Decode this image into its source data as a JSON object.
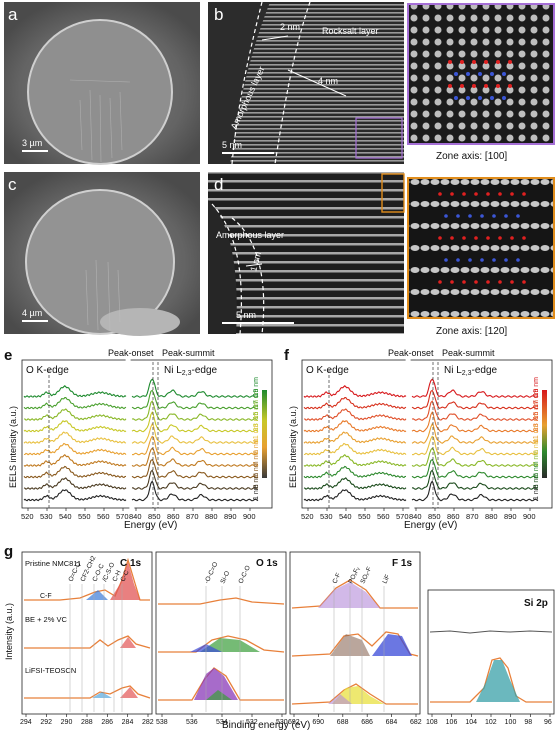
{
  "panels": {
    "a": {
      "label": "a",
      "scale": "3 µm"
    },
    "b": {
      "label": "b",
      "scale": "5 nm",
      "amorphous": "Amorphous layer",
      "rocksalt": "Rocksalt layer",
      "d1": "2 nm",
      "d2": "4 nm",
      "zone": "Zone axis: [100]"
    },
    "c": {
      "label": "c",
      "scale": "4 µm"
    },
    "d": {
      "label": "d",
      "scale": "5 nm",
      "amorphous": "Amorphous layer",
      "d1": "1 nm",
      "zone": "Zone axis: [120]"
    },
    "e": {
      "label": "e",
      "okedge": "O K-edge",
      "niedge": "Ni L",
      "niedge_sub": "2,3",
      "niedge_end": "-edge",
      "onset": "Peak-onset",
      "summit": "Peak-summit",
      "ylabel": "EELS intensity (a.u.)",
      "xlabel": "Energy (eV)"
    },
    "f": {
      "label": "f",
      "okedge": "O K-edge",
      "niedge": "Ni L",
      "niedge_sub": "2,3",
      "niedge_end": "-edge",
      "onset": "Peak-onset",
      "summit": "Peak-summit",
      "ylabel": "EELS intensity (a.u.)",
      "xlabel": "Energy (eV)"
    },
    "g": {
      "label": "g",
      "ylabel": "Intensity (a.u.)",
      "xlabel": "Binding energy (eV)",
      "samples": [
        "Pristine NMC811",
        "BE + 2% VC",
        "LiFSI-TEOSCN"
      ],
      "c1s": "C 1s",
      "o1s": "O 1s",
      "f1s": "F 1s",
      "si2p": "Si 2p",
      "c_peaks": [
        "O=C-O",
        "CF2-CH2",
        "C-O-C",
        "/C-S-O",
        "C-H",
        "C-C",
        "C-F"
      ],
      "o_peaks": [
        "-O-C=O",
        "Si-O",
        "O-C-O"
      ],
      "f_peaks": [
        "C-F",
        "POₓFᵧ",
        "SOₓ-F",
        "LiF"
      ]
    }
  },
  "colors": {
    "green": "#2e8b2e",
    "red": "#d7191c",
    "orange": "#e8a030",
    "purple": "#9b6fc4",
    "frame_orange": "#e08c1a"
  },
  "chart_data": [
    {
      "type": "line",
      "panel": "e",
      "title": "O K-edge / Ni L2,3-edge",
      "xlabel": "Energy (eV)",
      "ylabel": "EELS intensity (a.u.)",
      "x_ticks_left": [
        520,
        530,
        540,
        550,
        560,
        570
      ],
      "x_ticks_right": [
        840,
        850,
        860,
        870,
        880,
        890,
        900
      ],
      "depth_labels": [
        "1 nm",
        "3 nm",
        "5 nm",
        "7 nm",
        "9 nm",
        "11 nm",
        "13 nm",
        "15 nm",
        "17 nm",
        "19 nm"
      ],
      "onset_eV": 855,
      "summit_eV": 857
    },
    {
      "type": "line",
      "panel": "f",
      "title": "O K-edge / Ni L2,3-edge",
      "xlabel": "Energy (eV)",
      "ylabel": "EELS intensity (a.u.)",
      "x_ticks_left": [
        520,
        530,
        540,
        550,
        560,
        570
      ],
      "x_ticks_right": [
        840,
        850,
        860,
        870,
        880,
        890,
        900
      ],
      "depth_labels": [
        "1 nm",
        "3 nm",
        "5 nm",
        "7 nm",
        "9 nm",
        "11 nm",
        "13 nm",
        "15 nm",
        "17 nm",
        "19 nm"
      ],
      "onset_eV": 855,
      "summit_eV": 857
    },
    {
      "type": "line",
      "panel": "g",
      "xlabel": "Binding energy (eV)",
      "c1s_ticks": [
        294,
        292,
        290,
        288,
        286,
        284,
        282
      ],
      "o1s_ticks": [
        538,
        536,
        534,
        532,
        530
      ],
      "f1s_ticks": [
        692,
        690,
        688,
        686,
        684,
        682
      ],
      "si2p_ticks": [
        108,
        106,
        104,
        102,
        100,
        98,
        96
      ]
    }
  ]
}
